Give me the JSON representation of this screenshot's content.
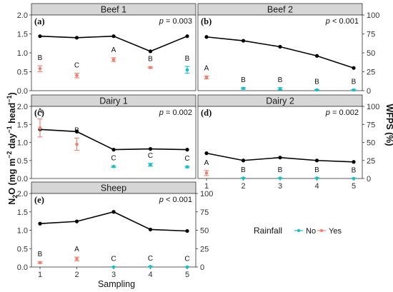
{
  "chart_data": {
    "type": "line",
    "title": "",
    "xlabel": "Sampling",
    "ylabel": "N2O (mg m-2 day-1 head-1)",
    "ylabel_right": "WFPS (%)",
    "ylim_left": [
      0,
      2.0
    ],
    "ylim_right": [
      0,
      100
    ],
    "x_ticks": [
      "1",
      "2",
      "3",
      "4",
      "5"
    ],
    "y_left_ticks": [
      "0.0",
      "0.5",
      "1.0",
      "1.5",
      "2.0"
    ],
    "y_right_ticks": [
      "0",
      "25",
      "50",
      "75",
      "100"
    ],
    "legend": {
      "title": "Rainfall",
      "entries": [
        {
          "label": "No",
          "color": "#19bfc4"
        },
        {
          "label": "Yes",
          "color": "#f08070"
        }
      ]
    },
    "colors": {
      "no": "#19bfc4",
      "yes": "#f08070",
      "wfps_line": "#000000",
      "strip": "#d6d6d6"
    },
    "panels": [
      {
        "strip": "Beef 1",
        "letter": "(a)",
        "p_prefix": "p",
        "p_rest": " = 0.003",
        "wfps": [
          72,
          70,
          72,
          52,
          72
        ],
        "n2o": [
          {
            "x": 1,
            "value": 0.58,
            "err": 0.08,
            "rain": "yes",
            "letter": "B"
          },
          {
            "x": 2,
            "value": 0.4,
            "err": 0.06,
            "rain": "yes",
            "letter": "C"
          },
          {
            "x": 3,
            "value": 0.82,
            "err": 0.05,
            "rain": "yes",
            "letter": "A"
          },
          {
            "x": 4,
            "value": 0.61,
            "err": 0.02,
            "rain": "yes",
            "letter": "B"
          },
          {
            "x": 5,
            "value": 0.55,
            "err": 0.09,
            "rain": "no",
            "letter": "B"
          }
        ]
      },
      {
        "strip": "Beef 2",
        "letter": "(b)",
        "p_prefix": "p",
        "p_rest": " < 0.001",
        "wfps": [
          71,
          66,
          58,
          46,
          30
        ],
        "n2o": [
          {
            "x": 1,
            "value": 0.35,
            "err": 0.04,
            "rain": "yes",
            "letter": "A"
          },
          {
            "x": 2,
            "value": 0.06,
            "err": 0.02,
            "rain": "no",
            "letter": "B"
          },
          {
            "x": 3,
            "value": 0.05,
            "err": 0.03,
            "rain": "no",
            "letter": "B"
          },
          {
            "x": 4,
            "value": 0.02,
            "err": 0.01,
            "rain": "no",
            "letter": "B"
          },
          {
            "x": 5,
            "value": 0.02,
            "err": 0.01,
            "rain": "no",
            "letter": "B"
          }
        ]
      },
      {
        "strip": "Dairy 1",
        "letter": "(c)",
        "p_prefix": "p",
        "p_rest": " = 0.002",
        "wfps": [
          68,
          65,
          40,
          41,
          40
        ],
        "n2o": [
          {
            "x": 1,
            "value": 1.4,
            "err": 0.25,
            "rain": "yes",
            "letter": "A"
          },
          {
            "x": 2,
            "value": 0.95,
            "err": 0.17,
            "rain": "yes",
            "letter": "B"
          },
          {
            "x": 3,
            "value": 0.33,
            "err": 0.02,
            "rain": "no",
            "letter": "C"
          },
          {
            "x": 4,
            "value": 0.38,
            "err": 0.04,
            "rain": "no",
            "letter": "C"
          },
          {
            "x": 5,
            "value": 0.32,
            "err": 0.02,
            "rain": "no",
            "letter": "C"
          }
        ]
      },
      {
        "strip": "Dairy 2",
        "letter": "(d)",
        "p_prefix": "p",
        "p_rest": " = 0.002",
        "wfps": [
          35,
          25,
          29,
          25,
          23
        ],
        "n2o": [
          {
            "x": 1,
            "value": 0.15,
            "err": 0.07,
            "rain": "yes",
            "letter": "A"
          },
          {
            "x": 2,
            "value": 0.01,
            "err": 0.01,
            "rain": "no",
            "letter": "B"
          },
          {
            "x": 3,
            "value": 0.01,
            "err": 0.01,
            "rain": "no",
            "letter": "B"
          },
          {
            "x": 4,
            "value": 0.01,
            "err": 0.01,
            "rain": "no",
            "letter": "B"
          },
          {
            "x": 5,
            "value": 0.0,
            "err": 0.01,
            "rain": "no",
            "letter": "B"
          }
        ]
      },
      {
        "strip": "Sheep",
        "letter": "(e)",
        "p_prefix": "p",
        "p_rest": " < 0.001",
        "wfps": [
          59,
          62,
          75,
          51,
          49
        ],
        "n2o": [
          {
            "x": 1,
            "value": 0.12,
            "err": 0.02,
            "rain": "yes",
            "letter": "B"
          },
          {
            "x": 2,
            "value": 0.22,
            "err": 0.05,
            "rain": "yes",
            "letter": "A"
          },
          {
            "x": 3,
            "value": 0.0,
            "err": 0.01,
            "rain": "no",
            "letter": "C"
          },
          {
            "x": 4,
            "value": 0.01,
            "err": 0.01,
            "rain": "no",
            "letter": "C"
          },
          {
            "x": 5,
            "value": 0.0,
            "err": 0.01,
            "rain": "no",
            "letter": "C"
          }
        ]
      }
    ]
  }
}
